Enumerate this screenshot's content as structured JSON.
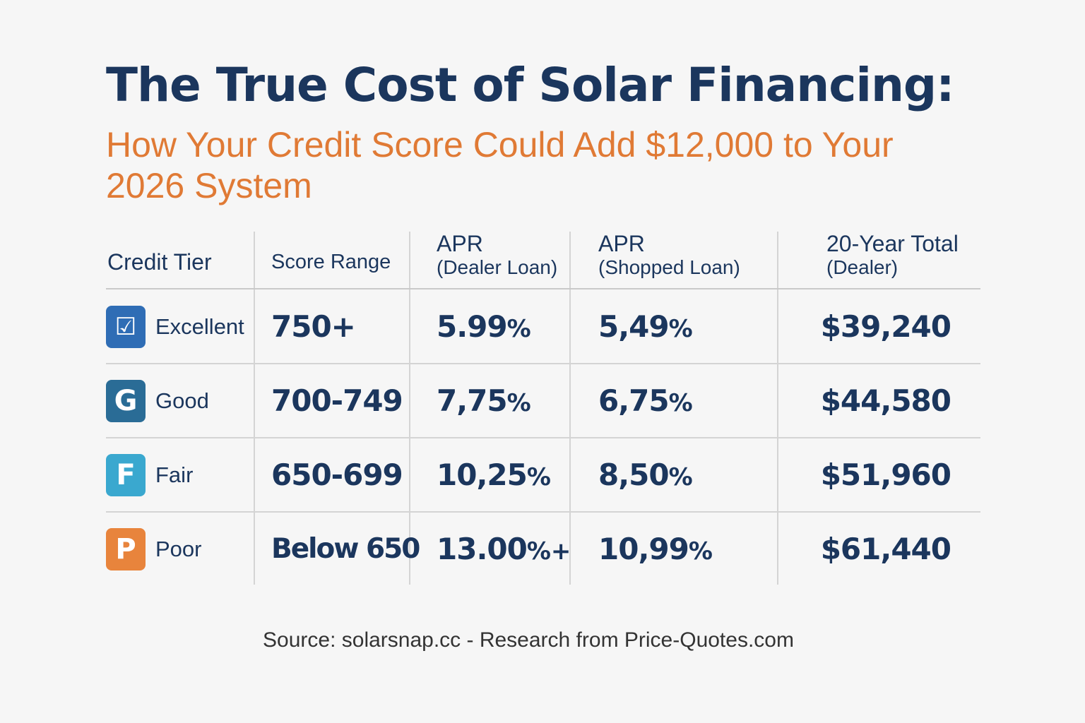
{
  "title": "The True Cost of Solar Financing:",
  "subtitle": "How Your Credit Score Could Add $12,000 to Your 2026 System",
  "source": "Source: solarsnap.cc - Research from Price-Quotes.com",
  "colors": {
    "title": "#1b365d",
    "subtitle": "#e07a35",
    "excellent_icon": "#2f6db5",
    "good_icon": "#2a6c96",
    "fair_icon": "#3aa8cf",
    "poor_icon": "#e8843c"
  },
  "chart_data": {
    "type": "table",
    "columns": [
      {
        "line1": "Credit Tier",
        "line2": ""
      },
      {
        "line1": "Score Range",
        "line2": ""
      },
      {
        "line1": "APR",
        "line2": "(Dealer Loan)"
      },
      {
        "line1": "APR",
        "line2": "(Shopped Loan)"
      },
      {
        "line1": "20-Year Total",
        "line2": "(Dealer)"
      }
    ],
    "rows": [
      {
        "icon": "checkmark-box-icon",
        "icon_glyph": "☑",
        "tier": "Excellent",
        "score_range": "750+",
        "apr_dealer": "5.99",
        "apr_dealer_suffix": "%",
        "apr_shopped": "5,49",
        "apr_shopped_suffix": "%",
        "total_dealer": "$39,240"
      },
      {
        "icon": "letter-g-box-icon",
        "icon_glyph": "G",
        "tier": "Good",
        "score_range": "700-749",
        "apr_dealer": "7,75",
        "apr_dealer_suffix": "%",
        "apr_shopped": "6,75",
        "apr_shopped_suffix": "%",
        "total_dealer": "$44,580"
      },
      {
        "icon": "letter-f-box-icon",
        "icon_glyph": "F",
        "tier": "Fair",
        "score_range": "650-699",
        "apr_dealer": "10,25",
        "apr_dealer_suffix": "%",
        "apr_shopped": "8,50",
        "apr_shopped_suffix": "%",
        "total_dealer": "$51,960"
      },
      {
        "icon": "letter-p-box-icon",
        "icon_glyph": "P",
        "tier": "Poor",
        "score_range": "Below 650",
        "apr_dealer": "13.00",
        "apr_dealer_suffix": "%+",
        "apr_shopped": "10,99",
        "apr_shopped_suffix": "%",
        "total_dealer": "$61,440"
      }
    ]
  }
}
